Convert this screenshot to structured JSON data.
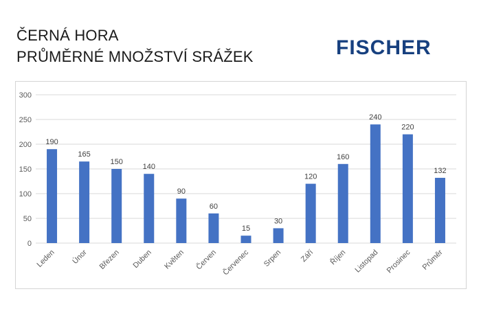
{
  "header": {
    "title_line1": "ČERNÁ HORA",
    "title_line2": "PRŮMĚRNÉ MNOŽSTVÍ SRÁŽEK",
    "logo": "FISCHER"
  },
  "colors": {
    "bar": "#4472c4",
    "grid": "#d9d9d9",
    "logo": "#17407f"
  },
  "chart_data": {
    "type": "bar",
    "title": "",
    "xlabel": "",
    "ylabel": "",
    "ylim": [
      0,
      300
    ],
    "yticks": [
      0,
      50,
      100,
      150,
      200,
      250,
      300
    ],
    "grid": true,
    "categories": [
      "Leden",
      "Únor",
      "Březen",
      "Duben",
      "Květen",
      "Červen",
      "Červenec",
      "Srpen",
      "Září",
      "Říjen",
      "Listopad",
      "Prosinec",
      "Průměr"
    ],
    "values": [
      190,
      165,
      150,
      140,
      90,
      60,
      15,
      30,
      120,
      160,
      240,
      220,
      132
    ]
  }
}
